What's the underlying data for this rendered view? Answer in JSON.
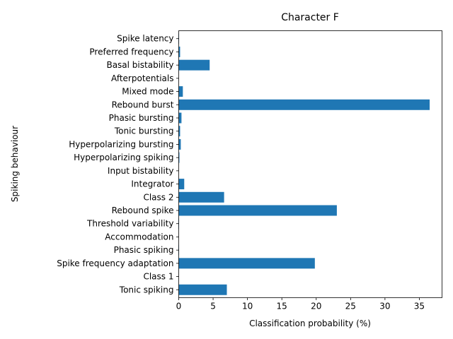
{
  "chart_data": {
    "type": "bar",
    "orientation": "horizontal",
    "title": "Character F",
    "xlabel": "Classification probability (%)",
    "ylabel": "Spiking behaviour",
    "xlim": [
      0,
      38.3
    ],
    "xticks": [
      0,
      5,
      10,
      15,
      20,
      25,
      30,
      35
    ],
    "categories": [
      "Tonic spiking",
      "Class 1",
      "Spike frequency adaptation",
      "Phasic spiking",
      "Accommodation",
      "Threshold variability",
      "Rebound spike",
      "Class 2",
      "Integrator",
      "Input bistability",
      "Hyperpolarizing spiking",
      "Hyperpolarizing bursting",
      "Tonic bursting",
      "Phasic bursting",
      "Rebound burst",
      "Mixed mode",
      "Afterpotentials",
      "Basal bistability",
      "Preferred frequency",
      "Spike latency"
    ],
    "values": [
      7.0,
      0.0,
      19.8,
      0.05,
      0.0,
      0.05,
      23.0,
      6.6,
      0.8,
      0.0,
      0.1,
      0.3,
      0.2,
      0.4,
      36.5,
      0.6,
      0.0,
      4.5,
      0.2,
      0.05
    ],
    "color": "#1f77b4",
    "grid": false,
    "legend": false
  }
}
